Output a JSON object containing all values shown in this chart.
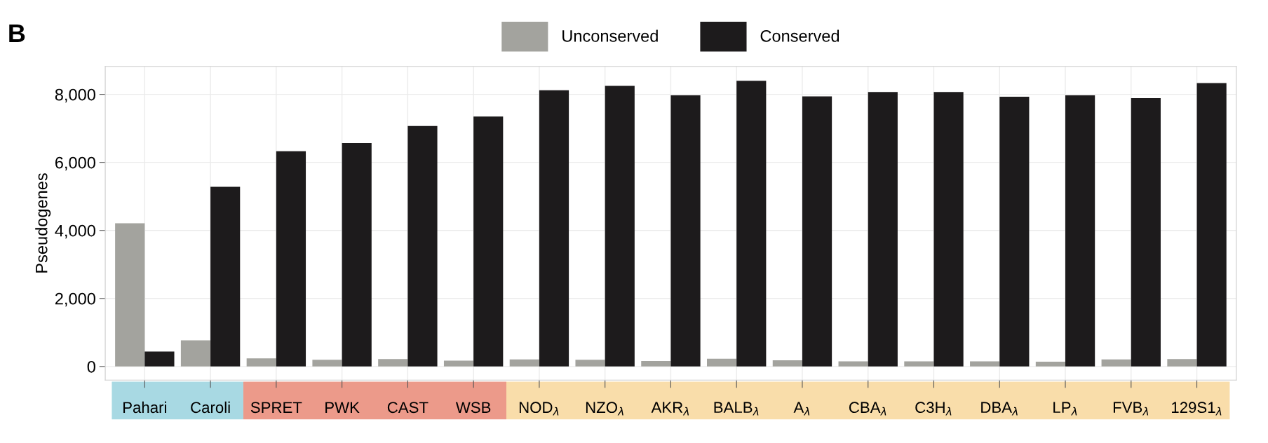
{
  "chart_data": {
    "type": "bar",
    "ylabel": "Pseudogenes",
    "annotations": [
      "B"
    ],
    "categories": [
      "Pahari",
      "Caroli",
      "SPRET",
      "PWK",
      "CAST",
      "WSB",
      "NOD$_{λ}$",
      "NZO$_{λ}$",
      "AKR$_{λ}$",
      "BALB$_{λ}$",
      "A$_{λ}$",
      "CBA$_{λ}$",
      "C3H$_{λ}$",
      "DBA$_{λ}$",
      "LP$_{λ}$",
      "FVB$_{λ}$",
      "129S1$_{λ}$"
    ],
    "series": [
      {
        "name": "Unconserved",
        "color": "#a3a39e",
        "values": [
          4210,
          770,
          240,
          200,
          220,
          170,
          210,
          200,
          160,
          230,
          180,
          150,
          150,
          150,
          140,
          210,
          220
        ]
      },
      {
        "name": "Conserved",
        "color": "#1d1b1c",
        "values": [
          440,
          5280,
          6330,
          6570,
          7070,
          7350,
          8120,
          8250,
          7970,
          8400,
          7940,
          8070,
          8070,
          7930,
          7970,
          7890,
          8330
        ]
      }
    ],
    "ylim": [
      -400,
      8820
    ],
    "yticks": [
      0,
      {
        "value": 2000,
        "label": "2,000"
      },
      {
        "value": 4000,
        "label": "4,000"
      },
      {
        "value": 6000,
        "label": "6,000"
      },
      {
        "value": 8000,
        "label": "8,000"
      }
    ],
    "grid": true,
    "legend": "top"
  }
}
